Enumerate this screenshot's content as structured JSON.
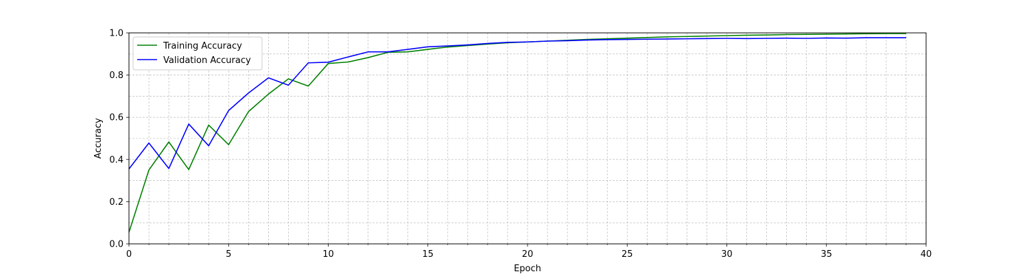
{
  "chart_data": {
    "type": "line",
    "title": "",
    "xlabel": "Epoch",
    "ylabel": "Accuracy",
    "xlim": [
      0,
      40
    ],
    "ylim": [
      0,
      1.0
    ],
    "xticks": [
      0,
      5,
      10,
      15,
      20,
      25,
      30,
      35,
      40
    ],
    "yticks": [
      0.0,
      0.2,
      0.4,
      0.6,
      0.8,
      1.0
    ],
    "xtick_labels": [
      "0",
      "5",
      "10",
      "15",
      "20",
      "25",
      "30",
      "35",
      "40"
    ],
    "ytick_labels": [
      "0.0",
      "0.2",
      "0.4",
      "0.6",
      "0.8",
      "1.0"
    ],
    "grid": true,
    "legend_position": "upper-left",
    "x": [
      0,
      1,
      2,
      3,
      4,
      5,
      6,
      7,
      8,
      9,
      10,
      11,
      12,
      13,
      14,
      15,
      16,
      17,
      18,
      19,
      20,
      21,
      22,
      23,
      24,
      25,
      26,
      27,
      28,
      29,
      30,
      31,
      32,
      33,
      34,
      35,
      36,
      37,
      38,
      39
    ],
    "series": [
      {
        "name": "Training Accuracy",
        "color": "#008000",
        "values": [
          0.055,
          0.35,
          0.483,
          0.352,
          0.563,
          0.47,
          0.627,
          0.71,
          0.782,
          0.748,
          0.855,
          0.862,
          0.883,
          0.908,
          0.91,
          0.922,
          0.933,
          0.94,
          0.947,
          0.953,
          0.957,
          0.961,
          0.965,
          0.969,
          0.972,
          0.975,
          0.978,
          0.981,
          0.983,
          0.985,
          0.987,
          0.989,
          0.99,
          0.992,
          0.993,
          0.994,
          0.995,
          0.996,
          0.997,
          0.997
        ]
      },
      {
        "name": "Validation Accuracy",
        "color": "#0000ff",
        "values": [
          0.355,
          0.478,
          0.357,
          0.568,
          0.465,
          0.632,
          0.715,
          0.787,
          0.752,
          0.858,
          0.861,
          0.886,
          0.91,
          0.91,
          0.922,
          0.934,
          0.938,
          0.943,
          0.95,
          0.955,
          0.957,
          0.961,
          0.963,
          0.966,
          0.968,
          0.969,
          0.97,
          0.971,
          0.972,
          0.973,
          0.974,
          0.973,
          0.974,
          0.975,
          0.974,
          0.976,
          0.975,
          0.977,
          0.977,
          0.977
        ]
      }
    ]
  }
}
